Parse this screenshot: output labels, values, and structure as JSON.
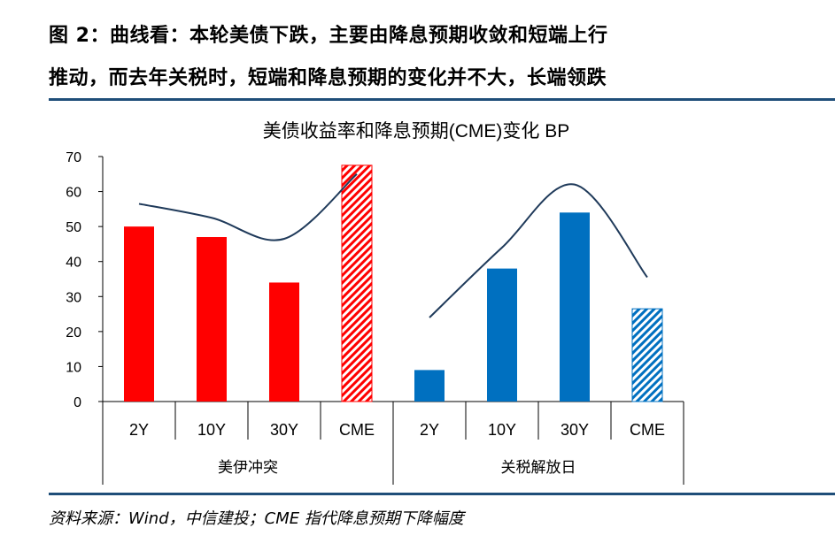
{
  "header": {
    "title_line1": "图 2：曲线看：本轮美债下跌，主要由降息预期收敛和短端上行",
    "title_line2": "推动，而去年关税时，短端和降息预期的变化并不大，长端领跌"
  },
  "chart_data": {
    "type": "bar",
    "title": "美债收益率和降息预期(CME)变化 BP",
    "ylim": [
      0,
      70
    ],
    "yticks": [
      0,
      10,
      20,
      30,
      40,
      50,
      60,
      70
    ],
    "grid": false,
    "groups": [
      {
        "name": "美伊冲突",
        "color": "#ff0000",
        "categories": [
          "2Y",
          "10Y",
          "30Y",
          "CME"
        ],
        "values": [
          50,
          47,
          34,
          67.5
        ],
        "hatched": [
          false,
          false,
          false,
          true
        ],
        "curve_values": [
          56.5,
          52.5,
          46.5,
          65
        ]
      },
      {
        "name": "关税解放日",
        "color": "#0070c0",
        "categories": [
          "2Y",
          "10Y",
          "30Y",
          "CME"
        ],
        "values": [
          9,
          38,
          54,
          26.5
        ],
        "hatched": [
          false,
          false,
          false,
          true
        ],
        "curve_values": [
          24,
          44,
          62,
          35.5
        ]
      }
    ]
  },
  "source": "资料来源：Wind，中信建投；CME 指代降息预期下降幅度",
  "colors": {
    "rule": "#1f4e79",
    "curve": "#1f3a5a"
  }
}
